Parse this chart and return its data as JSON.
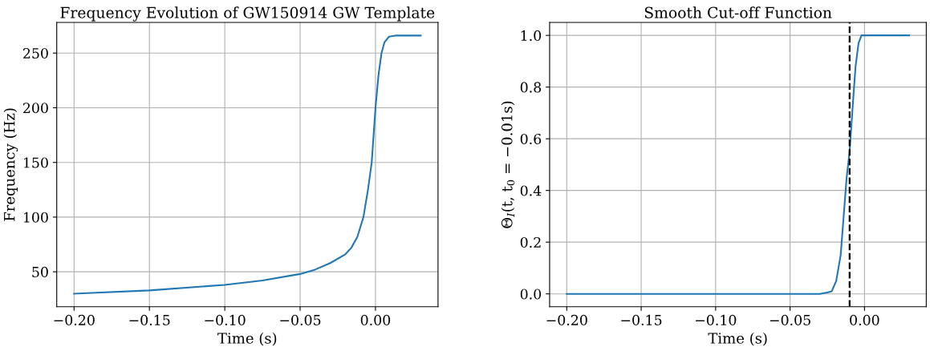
{
  "chart_data": [
    {
      "type": "line",
      "title": "Frequency Evolution of GW150914 GW Template",
      "xlabel": "Time (s)",
      "ylabel": "Frequency (Hz)",
      "x": [
        -0.2,
        -0.15,
        -0.1,
        -0.075,
        -0.05,
        -0.04,
        -0.03,
        -0.02,
        -0.016,
        -0.012,
        -0.008,
        -0.005,
        -0.0025,
        0,
        0.002,
        0.004,
        0.006,
        0.009,
        0.013,
        0.03
      ],
      "series": [
        {
          "color": "#1f77b4",
          "values": [
            30,
            33,
            38,
            42,
            48,
            52,
            58,
            66,
            72,
            82,
            100,
            125,
            150,
            200,
            230,
            250,
            260,
            265,
            266,
            266
          ]
        }
      ],
      "xlim": [
        -0.2115,
        0.0415
      ],
      "ylim": [
        18,
        278
      ],
      "xticks": [
        {
          "value": -0.2,
          "label": "−0.20"
        },
        {
          "value": -0.15,
          "label": "−0.15"
        },
        {
          "value": -0.1,
          "label": "−0.10"
        },
        {
          "value": -0.05,
          "label": "−0.05"
        },
        {
          "value": 0,
          "label": "0.00"
        }
      ],
      "yticks": [
        50,
        100,
        150,
        200,
        250
      ],
      "grid": true
    },
    {
      "type": "line",
      "title": "Smooth Cut-off Function",
      "xlabel": "Time (s)",
      "ylabel": "Θ$_{I}$(t, t$_{0}$ = −0.01s)",
      "x": [
        -0.2,
        -0.1,
        -0.03,
        -0.025,
        -0.022,
        -0.019,
        -0.016,
        -0.014,
        -0.012,
        -0.01,
        -0.008,
        -0.006,
        -0.004,
        -0.002,
        0,
        0.03
      ],
      "series": [
        {
          "color": "#1f77b4",
          "values": [
            0,
            0,
            0,
            0.005,
            0.01,
            0.05,
            0.15,
            0.3,
            0.45,
            0.55,
            0.72,
            0.88,
            0.97,
            1.0,
            1.0,
            1.0
          ]
        }
      ],
      "xlim": [
        -0.2115,
        0.0415
      ],
      "ylim": [
        -0.05,
        1.05
      ],
      "xticks": [
        {
          "value": -0.2,
          "label": "−0.20"
        },
        {
          "value": -0.15,
          "label": "−0.15"
        },
        {
          "value": -0.1,
          "label": "−0.10"
        },
        {
          "value": -0.05,
          "label": "−0.05"
        },
        {
          "value": 0,
          "label": "0.00"
        }
      ],
      "yticks": [
        {
          "value": 0,
          "label": "0.0"
        },
        {
          "value": 0.2,
          "label": "0.2"
        },
        {
          "value": 0.4,
          "label": "0.4"
        },
        {
          "value": 0.6,
          "label": "0.6"
        },
        {
          "value": 0.8,
          "label": "0.8"
        },
        {
          "value": 1,
          "label": "1.0"
        }
      ],
      "ref_lines": [
        {
          "axis": "x",
          "value": -0.01,
          "color": "#000000",
          "line_style": "dashed"
        }
      ],
      "grid": true
    }
  ]
}
